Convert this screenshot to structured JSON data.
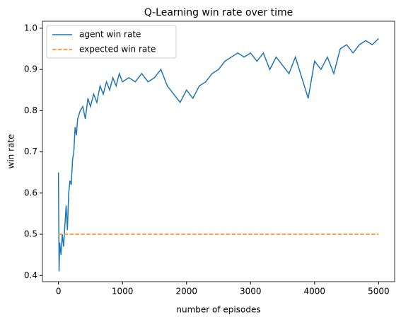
{
  "chart_data": {
    "type": "line",
    "title": "Q-Learning win rate over time",
    "x_label": "number of episodes",
    "y_label": "win rate",
    "xlim": [
      -250,
      5250
    ],
    "ylim": [
      0.385,
      1.017
    ],
    "xticks": [
      0,
      1000,
      2000,
      3000,
      4000,
      5000
    ],
    "yticks": [
      0.4,
      0.5,
      0.6,
      0.7,
      0.8,
      0.9,
      {
        "value": 1,
        "label": "1.0"
      }
    ],
    "legend": "upper left",
    "series": [
      {
        "name": "agent win rate",
        "color": "#1f77b4",
        "style": "solid",
        "x": [
          0,
          10,
          20,
          40,
          60,
          80,
          100,
          120,
          140,
          160,
          180,
          200,
          220,
          240,
          260,
          280,
          300,
          340,
          380,
          420,
          460,
          500,
          550,
          600,
          650,
          700,
          750,
          800,
          850,
          900,
          950,
          1000,
          1100,
          1200,
          1300,
          1400,
          1500,
          1600,
          1700,
          1800,
          1900,
          2000,
          2100,
          2200,
          2300,
          2400,
          2500,
          2600,
          2700,
          2800,
          2900,
          3000,
          3100,
          3200,
          3300,
          3400,
          3500,
          3600,
          3700,
          3800,
          3900,
          4000,
          4100,
          4200,
          4300,
          4400,
          4500,
          4600,
          4700,
          4800,
          4900,
          5000
        ],
        "values": [
          0.65,
          0.41,
          0.48,
          0.45,
          0.5,
          0.47,
          0.52,
          0.57,
          0.51,
          0.6,
          0.63,
          0.62,
          0.68,
          0.7,
          0.76,
          0.74,
          0.78,
          0.8,
          0.81,
          0.78,
          0.83,
          0.81,
          0.84,
          0.82,
          0.86,
          0.84,
          0.87,
          0.85,
          0.88,
          0.86,
          0.89,
          0.87,
          0.88,
          0.87,
          0.89,
          0.87,
          0.88,
          0.9,
          0.86,
          0.84,
          0.82,
          0.85,
          0.83,
          0.86,
          0.87,
          0.89,
          0.9,
          0.92,
          0.93,
          0.94,
          0.93,
          0.94,
          0.92,
          0.94,
          0.9,
          0.93,
          0.91,
          0.89,
          0.93,
          0.88,
          0.83,
          0.92,
          0.9,
          0.93,
          0.89,
          0.95,
          0.96,
          0.94,
          0.96,
          0.97,
          0.96,
          0.975
        ]
      },
      {
        "name": "expected win rate",
        "color": "#ff7f0e",
        "style": "dashed",
        "x": [
          0,
          5000
        ],
        "values": [
          0.5,
          0.5
        ]
      }
    ]
  }
}
